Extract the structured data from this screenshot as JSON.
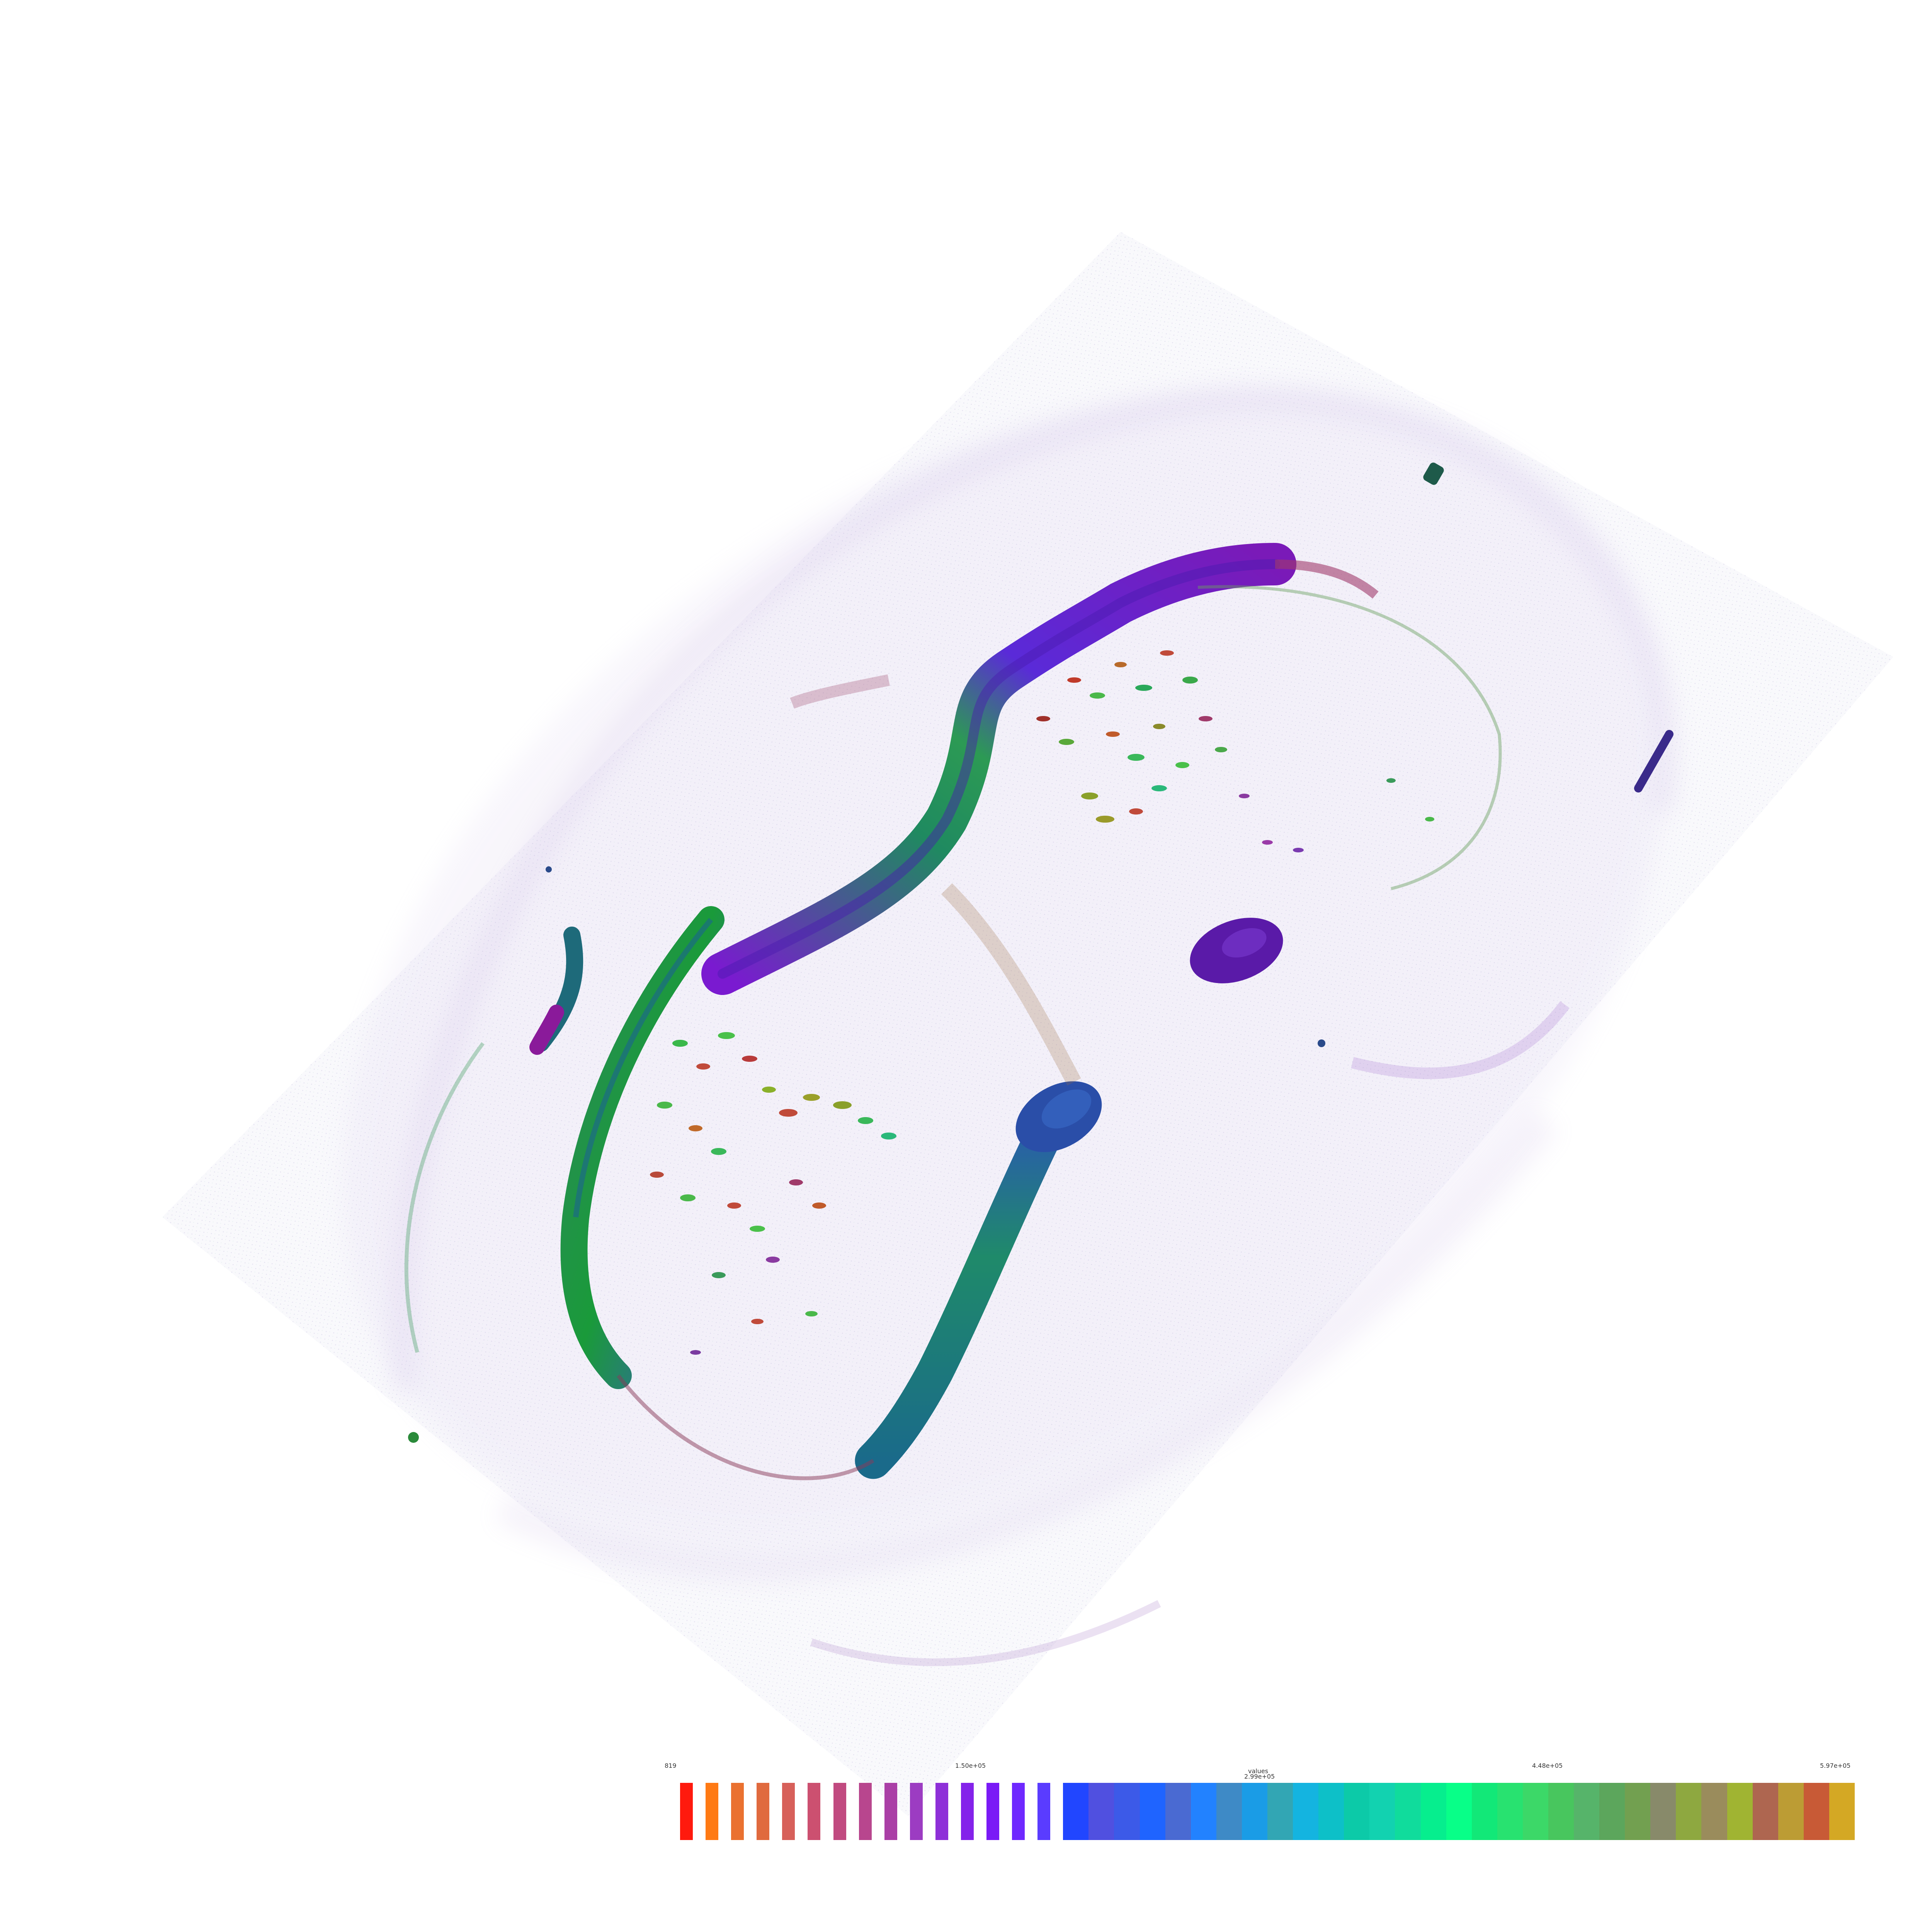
{
  "scalar_bar": {
    "title": "values",
    "ticks": [
      "819",
      "1.50e+05",
      "2.99e+05",
      "4.48e+05",
      "5.97e+05"
    ],
    "colors": [
      "#ff1a0e",
      "#ff7a14",
      "#ea7130",
      "#e06a3e",
      "#d7605a",
      "#cc5070",
      "#c14a80",
      "#b8468e",
      "#aa3fa6",
      "#9c3cc2",
      "#8e30d8",
      "#8422ea",
      "#7a1af6",
      "#6f28ff",
      "#5a3cff",
      "#2146ff",
      "#5050e0",
      "#3c5ae8",
      "#1f64ff",
      "#4a6ad2",
      "#2282ff",
      "#3e8ac6",
      "#1a9ce6",
      "#32a6b4",
      "#14b4e0",
      "#0dc0c8",
      "#0ccaa8",
      "#12d2b0",
      "#10dc9c",
      "#06ee8e",
      "#08ff88",
      "#12e878",
      "#28e270",
      "#3cd868",
      "#48c65e",
      "#56b46a",
      "#5ca65c",
      "#72a050",
      "#888a6a",
      "#8ea840",
      "#9a8c5c",
      "#a0b432",
      "#ae6650",
      "#bc9c34",
      "#c85a36",
      "#d4a824"
    ],
    "gap_after_index": 14
  },
  "volume": {
    "description_colors": {
      "ridge_primary": "#6a1fd0",
      "ridge_secondary": "#1f8a6a",
      "blob_dark": "#5a1aa8",
      "speckle_warm": "#c04a2a",
      "speckle_green": "#4ab84a",
      "haze": "#9b7ac8"
    }
  }
}
